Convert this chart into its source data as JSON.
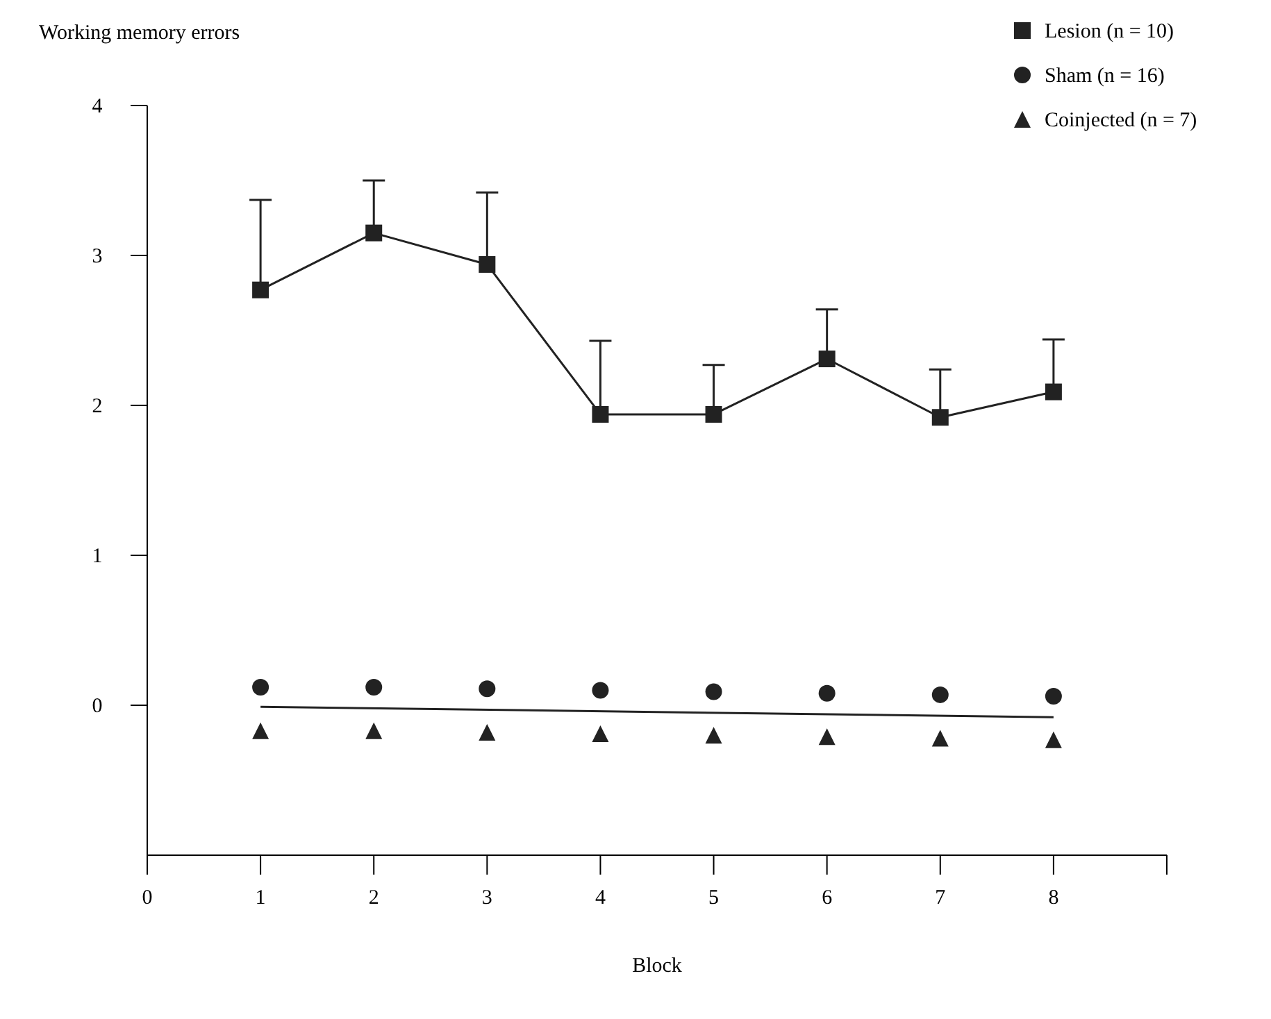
{
  "chart_data": {
    "type": "line",
    "xlabel": "Block",
    "ylabel": "Working memory errors",
    "x": [
      1,
      2,
      3,
      4,
      5,
      6,
      7,
      8
    ],
    "xlim": [
      0,
      9
    ],
    "xticks": [
      0,
      1,
      2,
      3,
      4,
      5,
      6,
      7,
      8,
      {
        "value": 9,
        "label": null
      }
    ],
    "ylim": [
      -1,
      4
    ],
    "yticks": [
      0,
      1,
      2,
      3,
      4
    ],
    "legend": "top right",
    "series": [
      {
        "name": "Lesion (n = 10)",
        "color": "#222222",
        "marker": "square",
        "values": [
          2.77,
          3.15,
          2.94,
          1.94,
          1.94,
          2.31,
          1.92,
          2.09
        ],
        "errors": [
          [
            2.77,
            3.37
          ],
          [
            3.15,
            3.5
          ],
          [
            2.94,
            3.42
          ],
          [
            1.94,
            2.43
          ],
          [
            1.94,
            2.27
          ],
          [
            2.31,
            2.64
          ],
          [
            1.92,
            2.24
          ],
          [
            2.09,
            2.44
          ]
        ]
      },
      {
        "name": "Sham (n = 16)",
        "type": "scatter",
        "color": "#222222",
        "marker": "circle",
        "values": [
          0.12,
          0.12,
          0.11,
          0.1,
          0.09,
          0.08,
          0.07,
          0.06
        ]
      },
      {
        "name": "Coinjected (n = 7)",
        "type": "scatter",
        "color": "#222222",
        "marker": "triangle",
        "values": [
          -0.17,
          -0.17,
          -0.18,
          -0.19,
          -0.2,
          -0.21,
          -0.22,
          -0.23
        ]
      },
      {
        "type": "line",
        "color": "#222222",
        "marker": "none",
        "x": [
          1,
          8
        ],
        "values": [
          -0.01,
          -0.08
        ]
      }
    ]
  }
}
